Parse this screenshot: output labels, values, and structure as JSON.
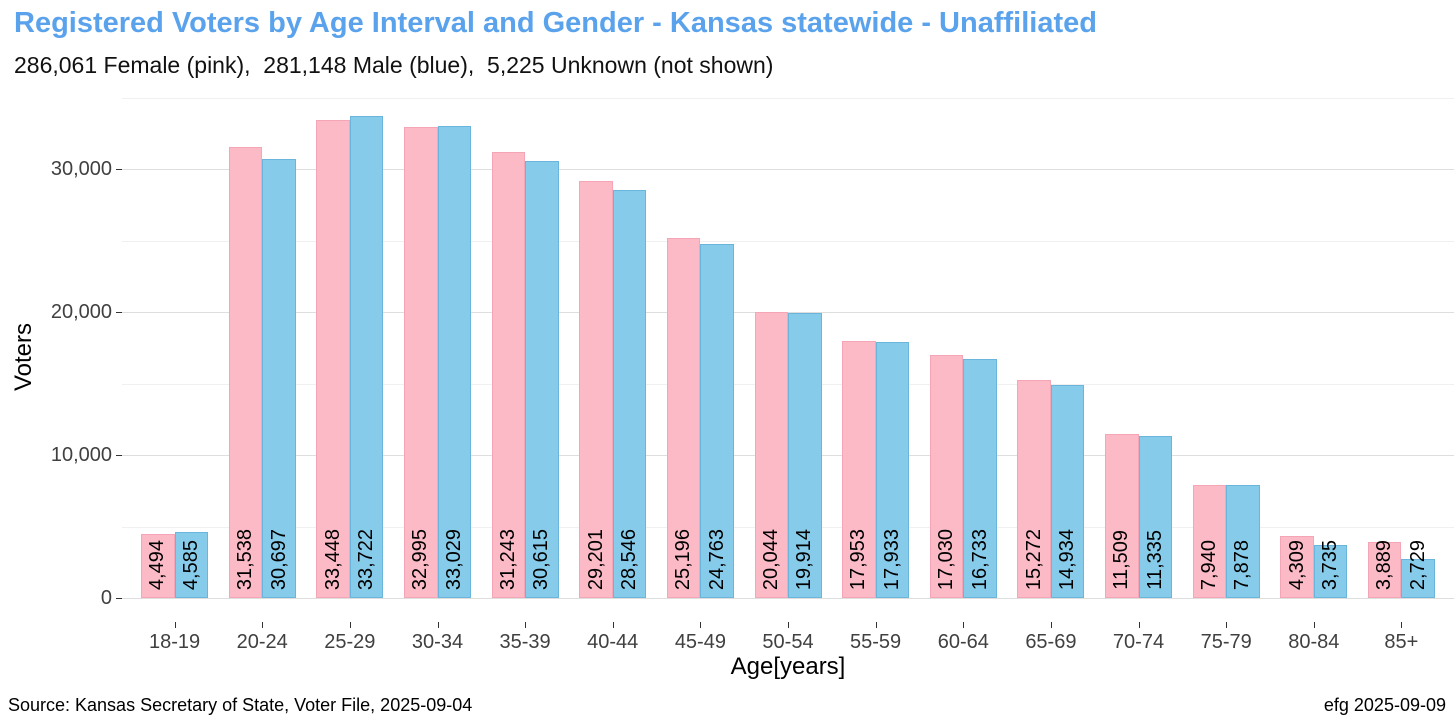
{
  "header": {
    "title": "Registered Voters by Age Interval and Gender - Kansas statewide - Unaffiliated",
    "subtitle": "286,061 Female (pink),  281,148 Male (blue),  5,225 Unknown (not shown)"
  },
  "colors": {
    "title_blue": "#5aa3ec",
    "female_fill": "#fbbac6",
    "female_border": "#f5a6b6",
    "male_fill": "#87cbea",
    "male_border": "#6ab5dc",
    "grid_major": "#dedede",
    "grid_minor": "#f0f0f0",
    "axis_text": "#404040",
    "tick": "#333333"
  },
  "chart_data": {
    "type": "bar",
    "title": "Registered Voters by Age Interval and Gender - Kansas statewide - Unaffiliated",
    "subtitle": "286,061 Female (pink),  281,148 Male (blue),  5,225 Unknown (not shown)",
    "xlabel": "Age[years]",
    "ylabel": "Voters",
    "categories": [
      "18-19",
      "20-24",
      "25-29",
      "30-34",
      "35-39",
      "40-44",
      "45-49",
      "50-54",
      "55-59",
      "60-64",
      "65-69",
      "70-74",
      "75-79",
      "80-84",
      "85+"
    ],
    "series": [
      {
        "name": "Female",
        "color": "pink",
        "values": [
          4494,
          31538,
          33448,
          32995,
          31243,
          29201,
          25196,
          20044,
          17953,
          17030,
          15272,
          11509,
          7940,
          4309,
          3889
        ]
      },
      {
        "name": "Male",
        "color": "skyblue",
        "values": [
          4585,
          30697,
          33722,
          33029,
          30615,
          28546,
          24763,
          19914,
          17933,
          16733,
          14934,
          11335,
          7878,
          3735,
          2729
        ]
      }
    ],
    "totals": {
      "female": "286,061",
      "male": "281,148",
      "unknown": "5,225"
    },
    "ylim": [
      0,
      35408
    ],
    "yticks": [
      0,
      10000,
      20000,
      30000
    ],
    "ytick_labels": [
      "0",
      "10,000",
      "20,000",
      "30,000"
    ],
    "minor_yticks": [
      5000,
      15000,
      25000,
      35000
    ],
    "grid": true,
    "legend_position": "none",
    "bar_value_labels": "shown rotated 90° inside/above bar bases"
  },
  "footer": {
    "left": "Source: Kansas Secretary of State, Voter File, 2025-09-04",
    "right": "efg 2025-09-09"
  }
}
